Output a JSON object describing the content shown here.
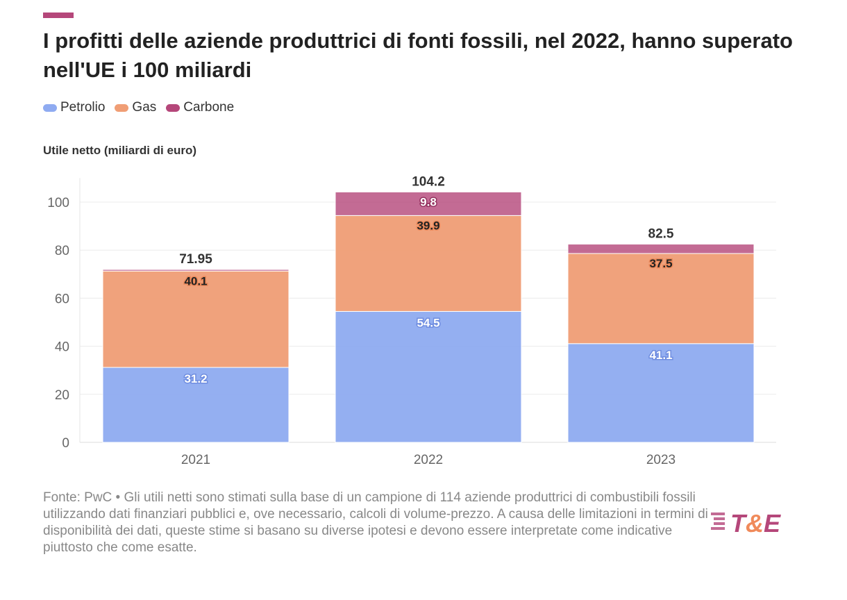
{
  "title": "I profitti delle aziende produttrici di fonti fossili, nel 2022, hanno superato nell'UE i 100 miliardi",
  "legend": [
    {
      "name": "Petrolio",
      "color": "#8fabf1"
    },
    {
      "name": "Gas",
      "color": "#f09e75"
    },
    {
      "name": "Carbone",
      "color": "#b5477a"
    }
  ],
  "note": "Fonte: PwC • Gli utili netti sono stimati sulla base di un campione di 114 aziende produttrici di combustibili fossili utilizzando dati finanziari pubblici e, ove necessario, calcoli di volume-prezzo. A causa delle limitazioni in termini di disponibilità dei dati, queste stime si basano su diverse ipotesi e devono essere interpretate come indicative piuttosto che come esatte.",
  "logo": "T&E",
  "chart_data": {
    "type": "bar",
    "stacked": true,
    "ylabel": "Utile netto (miliardi di euro)",
    "categories": [
      "2021",
      "2022",
      "2023"
    ],
    "ylim": [
      0,
      110
    ],
    "yticks": [
      0,
      20,
      40,
      60,
      80,
      100
    ],
    "grid": true,
    "series": [
      {
        "name": "Petrolio",
        "values": [
          31.2,
          54.5,
          41.1
        ],
        "color": "#8fabf1"
      },
      {
        "name": "Gas",
        "values": [
          40.1,
          39.9,
          37.5
        ],
        "color": "#f09e75"
      },
      {
        "name": "Carbone",
        "values": [
          0.65,
          9.8,
          3.9
        ],
        "color": "#b5477a"
      }
    ],
    "segment_labels": [
      [
        "31.2",
        "40.1",
        ""
      ],
      [
        "54.5",
        "39.9",
        "9.8"
      ],
      [
        "41.1",
        "37.5",
        ""
      ]
    ],
    "totals": [
      "71.95",
      "104.2",
      "82.5"
    ]
  }
}
